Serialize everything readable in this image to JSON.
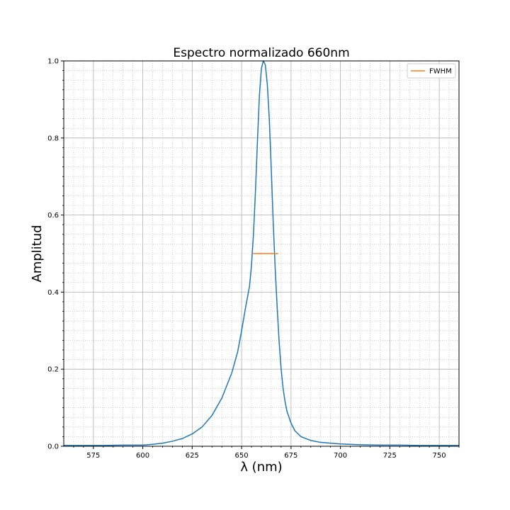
{
  "chart_data": {
    "type": "line",
    "title": "Espectro normalizado 660nm",
    "xlabel": "λ (nm)",
    "ylabel": "Amplitud",
    "xlim": [
      560,
      760
    ],
    "ylim": [
      0,
      1.0
    ],
    "x_ticks": [
      575,
      600,
      625,
      650,
      675,
      700,
      725,
      750
    ],
    "y_ticks": [
      0.0,
      0.2,
      0.4,
      0.6,
      0.8,
      1.0
    ],
    "y_tick_labels": [
      "0.0",
      "0.2",
      "0.4",
      "0.6",
      "0.8",
      "1.0"
    ],
    "grid": "major solid, minor dotted",
    "legend_position": "top-right",
    "series": [
      {
        "name": "",
        "color": "#1f77b4",
        "x": [
          560,
          570,
          580,
          590,
          600,
          605,
          610,
          615,
          620,
          625,
          630,
          635,
          640,
          645,
          648,
          650,
          652,
          654,
          655,
          656,
          657,
          658,
          659,
          660,
          661,
          662,
          663,
          664,
          665,
          666,
          667,
          668,
          669,
          670,
          671,
          672,
          673,
          675,
          677,
          680,
          685,
          690,
          700,
          710,
          720,
          730,
          740,
          750,
          760
        ],
        "y": [
          0.002,
          0.002,
          0.002,
          0.003,
          0.003,
          0.005,
          0.008,
          0.013,
          0.02,
          0.032,
          0.05,
          0.08,
          0.125,
          0.19,
          0.245,
          0.3,
          0.36,
          0.415,
          0.47,
          0.55,
          0.66,
          0.79,
          0.91,
          0.98,
          1.0,
          0.99,
          0.94,
          0.85,
          0.72,
          0.58,
          0.46,
          0.36,
          0.27,
          0.2,
          0.15,
          0.115,
          0.09,
          0.06,
          0.04,
          0.025,
          0.015,
          0.01,
          0.006,
          0.004,
          0.003,
          0.003,
          0.002,
          0.002,
          0.002
        ]
      },
      {
        "name": "FWHM",
        "color": "#ff7f0e",
        "x": [
          655.5,
          668.5
        ],
        "y": [
          0.5,
          0.5
        ]
      }
    ]
  }
}
